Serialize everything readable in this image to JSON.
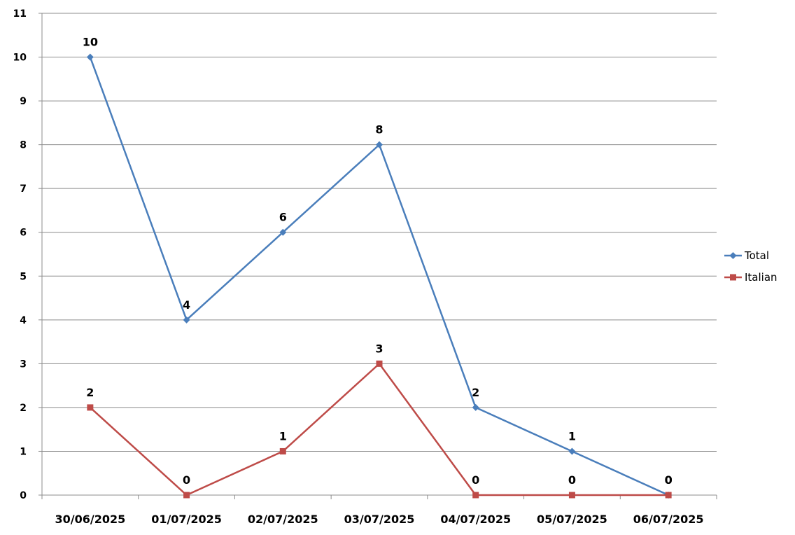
{
  "chart_data": {
    "type": "line",
    "title": "",
    "xlabel": "",
    "ylabel": "",
    "categories": [
      "30/06/2025",
      "01/07/2025",
      "02/07/2025",
      "03/07/2025",
      "04/07/2025",
      "05/07/2025",
      "06/07/2025"
    ],
    "ylim": [
      0,
      11
    ],
    "yticks": [
      0,
      1,
      2,
      3,
      4,
      5,
      6,
      7,
      8,
      9,
      10,
      11
    ],
    "grid": true,
    "legend": "right",
    "series": [
      {
        "name": "Total",
        "values": [
          10,
          4,
          6,
          8,
          2,
          1,
          0
        ],
        "color": "#4a7ebb",
        "marker": "diamond"
      },
      {
        "name": "Italian",
        "values": [
          2,
          0,
          1,
          3,
          0,
          0,
          0
        ],
        "color": "#be4b48",
        "marker": "square"
      }
    ]
  }
}
